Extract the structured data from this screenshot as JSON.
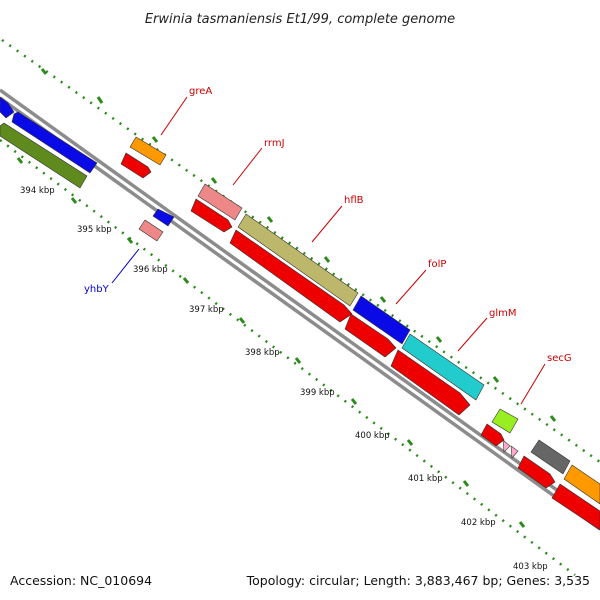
{
  "title": "Erwinia tasmaniensis Et1/99, complete genome",
  "footer": {
    "accession": "Accession: NC_010694",
    "summary": "Topology: circular; Length: 3,883,467 bp; Genes: 3,535"
  },
  "ruler_labels": [
    "394 kbp",
    "395 kbp",
    "396 kbp",
    "397 kbp",
    "398 kbp",
    "399 kbp",
    "400 kbp",
    "401 kbp",
    "402 kbp",
    "403 kbp"
  ],
  "gene_labels": [
    {
      "name": "greA",
      "color": "#cc0000"
    },
    {
      "name": "rrmJ",
      "color": "#cc0000"
    },
    {
      "name": "hflB",
      "color": "#cc0000"
    },
    {
      "name": "folP",
      "color": "#cc0000"
    },
    {
      "name": "glmM",
      "color": "#cc0000"
    },
    {
      "name": "secG",
      "color": "#cc0000"
    },
    {
      "name": "yhbY",
      "color": "#0000cc"
    }
  ],
  "colors": {
    "backbone": "#8c8c8c",
    "ticks": "#2a8a1a",
    "cds": "#ee0000",
    "gene_blue": "#0a0ae6",
    "gene_olive": "#5f8a1e",
    "gene_orange": "#ff9900",
    "gene_pink": "#ee8888",
    "gene_khaki": "#bdb76b",
    "gene_cyan": "#22cccc",
    "gene_lime": "#99ee22",
    "gene_gray": "#666666",
    "gene_lightpink": "#ffaacc"
  }
}
